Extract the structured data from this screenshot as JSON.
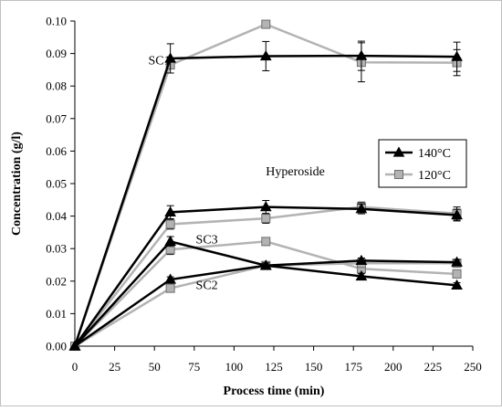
{
  "chart_data": {
    "type": "line",
    "xlabel": "Process time (min)",
    "ylabel": "Concentration (g/l)",
    "xlim": [
      0,
      250
    ],
    "ylim": [
      0,
      0.1
    ],
    "x_ticks": [
      "0",
      "25",
      "50",
      "75",
      "100",
      "125",
      "150",
      "175",
      "200",
      "225",
      "250"
    ],
    "y_ticks": [
      "0.00",
      "0.01",
      "0.02",
      "0.03",
      "0.04",
      "0.05",
      "0.06",
      "0.07",
      "0.08",
      "0.09",
      "0.10"
    ],
    "grid": false,
    "legend_position": "right",
    "legend": [
      {
        "label": "140°C",
        "color": "#000000",
        "marker": "triangle"
      },
      {
        "label": "120°C",
        "color": "#b3b3b3",
        "marker": "square"
      }
    ],
    "annotations": [
      {
        "text": "SC1",
        "x": 60,
        "y": 0.088
      },
      {
        "text": "Hyperoside",
        "x": 120,
        "y": 0.054
      },
      {
        "text": "SC3",
        "x": 76,
        "y": 0.033
      },
      {
        "text": "SC2",
        "x": 76,
        "y": 0.019
      }
    ],
    "series": [
      {
        "group": "SC1",
        "temp": "140°C",
        "color": "#000000",
        "marker": "triangle",
        "x": [
          0,
          60,
          120,
          180,
          240
        ],
        "y": [
          0,
          0.0885,
          0.0892,
          0.0893,
          0.089
        ],
        "err": [
          0,
          0.0045,
          0.0045,
          0.0045,
          0.0045
        ]
      },
      {
        "group": "SC1",
        "temp": "120°C",
        "color": "#b3b3b3",
        "marker": "square",
        "x": [
          0,
          60,
          120,
          180,
          240
        ],
        "y": [
          0,
          0.0865,
          0.099,
          0.0873,
          0.0872
        ],
        "err": [
          0,
          0,
          0,
          0.006,
          0.004
        ]
      },
      {
        "group": "Hyperoside",
        "temp": "140°C",
        "color": "#000000",
        "marker": "triangle",
        "x": [
          0,
          60,
          120,
          180,
          240
        ],
        "y": [
          0,
          0.0412,
          0.0428,
          0.0422,
          0.0403
        ],
        "err": [
          0,
          0.002,
          0.002,
          0.0015,
          0.0018
        ]
      },
      {
        "group": "Hyperoside",
        "temp": "120°C",
        "color": "#b3b3b3",
        "marker": "square",
        "x": [
          0,
          60,
          120,
          180,
          240
        ],
        "y": [
          0,
          0.0375,
          0.0393,
          0.0428,
          0.0408
        ],
        "err": [
          0,
          0.0015,
          0.0015,
          0.0015,
          0.002
        ]
      },
      {
        "group": "SC3",
        "temp": "140°C",
        "color": "#000000",
        "marker": "triangle",
        "x": [
          0,
          60,
          120,
          180,
          240
        ],
        "y": [
          0,
          0.0322,
          0.0248,
          0.0215,
          0.0187
        ],
        "err": [
          0,
          0.0015,
          0.0008,
          0.0008,
          0.0008
        ]
      },
      {
        "group": "SC3",
        "temp": "120°C",
        "color": "#b3b3b3",
        "marker": "square",
        "x": [
          0,
          60,
          120,
          180,
          240
        ],
        "y": [
          0,
          0.0297,
          0.0322,
          0.0238,
          0.0222
        ],
        "err": [
          0,
          0.0015,
          0.0012,
          0.0008,
          0.0008
        ]
      },
      {
        "group": "SC2",
        "temp": "140°C",
        "color": "#000000",
        "marker": "triangle",
        "x": [
          0,
          60,
          120,
          180,
          240
        ],
        "y": [
          0,
          0.0205,
          0.0248,
          0.0263,
          0.0258
        ],
        "err": [
          0,
          0.0008,
          0.0008,
          0.0008,
          0.0008
        ]
      },
      {
        "group": "SC2",
        "temp": "120°C",
        "color": "#b3b3b3",
        "marker": "square",
        "x": [
          0,
          60,
          120,
          180,
          240
        ],
        "y": [
          0,
          0.0178,
          0.0248,
          0.0255,
          0.0255
        ],
        "err": [
          0,
          0.0008,
          0.0008,
          0.0008,
          0.0008
        ]
      }
    ]
  }
}
